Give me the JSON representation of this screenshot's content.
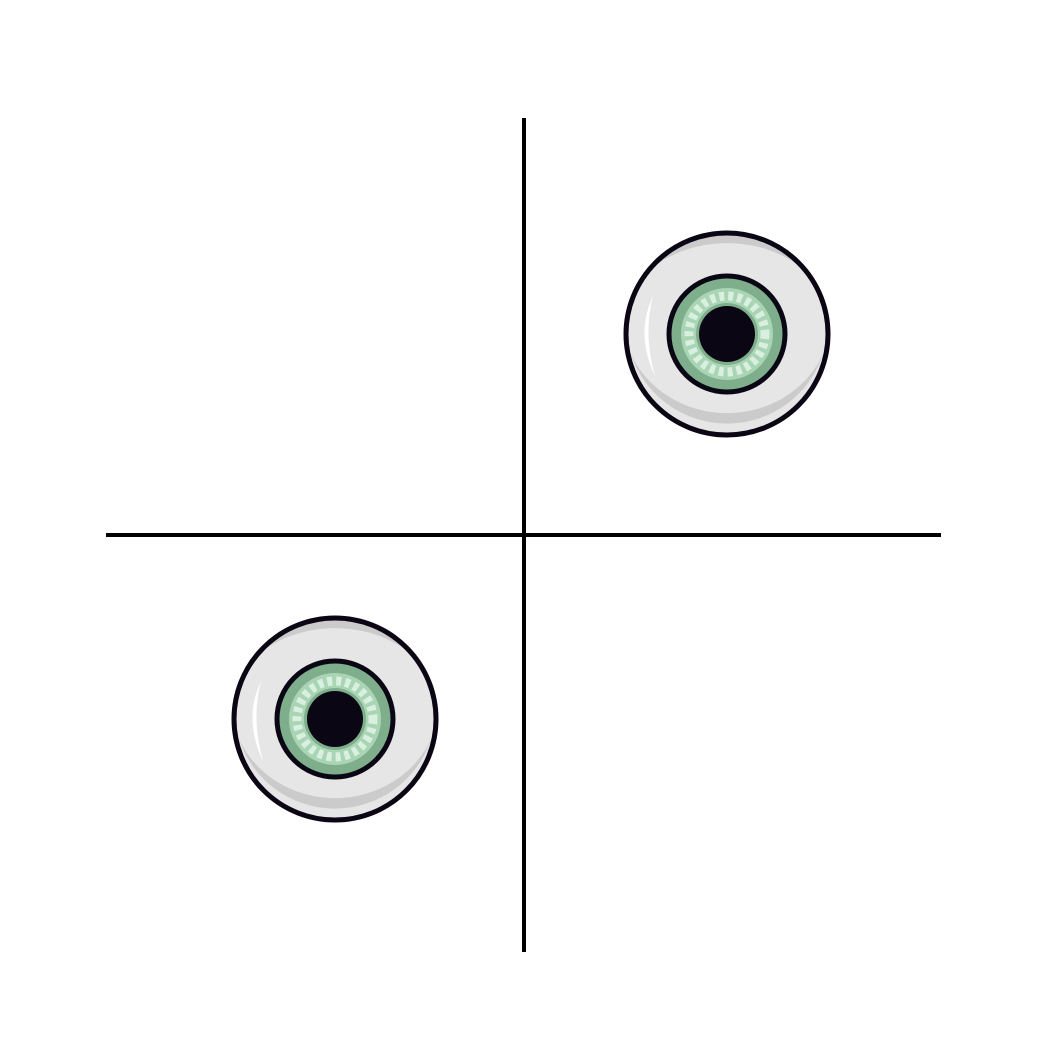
{
  "diagram": {
    "type": "quadrant-grid",
    "quadrant_count": 4,
    "axes": {
      "horizontal": true,
      "vertical": true,
      "color": "#000000"
    },
    "icons": [
      {
        "name": "eyeball-icon",
        "quadrant": "top-right"
      },
      {
        "name": "eyeball-icon",
        "quadrant": "bottom-left"
      }
    ],
    "colors": {
      "background": "#ffffff",
      "sclera": "#e6e6e6",
      "sclera_shadow": "#c4c4c4",
      "iris_outer": "#7fae8c",
      "iris_inner": "#a9d5b5",
      "iris_rays": "#d9efdf",
      "pupil": "#0a0614",
      "outline": "#0a0614"
    }
  }
}
